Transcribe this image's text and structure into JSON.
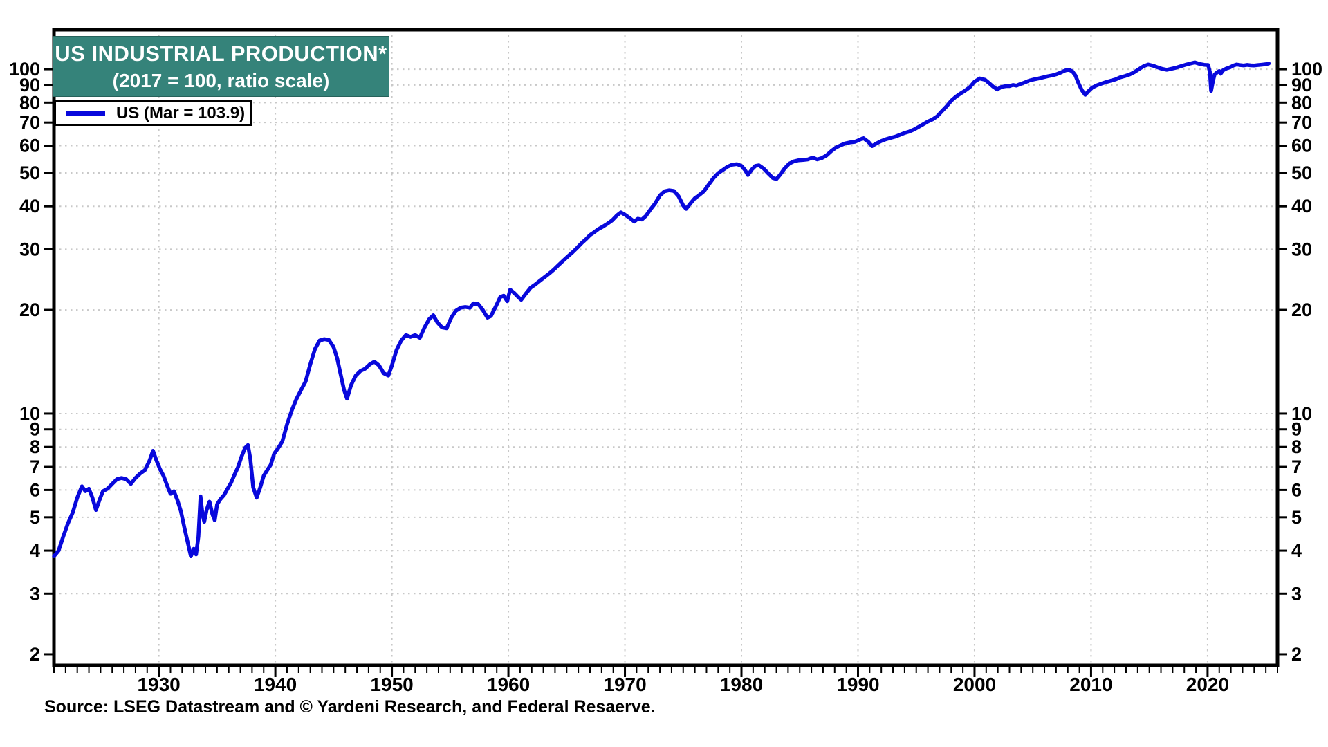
{
  "header": {
    "title_line1": "US INDUSTRIAL PRODUCTION*",
    "title_line2": "(2017 = 100, ratio scale)",
    "title_bg": "#35837a",
    "title_color": "#ffffff"
  },
  "legend": {
    "label": "US (Mar = 103.9)",
    "line_color": "#0808dc"
  },
  "footer": {
    "source": "Source: LSEG Datastream and © Yardeni Research, and Federal Resaerve."
  },
  "colors": {
    "line_blue": "#0808dc",
    "grid_gray": "#c8c8c8",
    "axis_black": "#000000",
    "header_teal": "#35837a"
  },
  "chart_data": {
    "type": "line",
    "title": "US INDUSTRIAL PRODUCTION*",
    "subtitle": "(2017 = 100, ratio scale)",
    "y_scale": "log",
    "grid": "dotted",
    "legend_position": "top-left",
    "xlim": [
      1921,
      2026
    ],
    "ylim": [
      1.857,
      130.2
    ],
    "x_major_ticks": [
      1930,
      1940,
      1950,
      1960,
      1970,
      1980,
      1990,
      2000,
      2010,
      2020
    ],
    "x_minor_tick_step": 1,
    "y_ticks": [
      2,
      3,
      4,
      5,
      6,
      7,
      8,
      9,
      10,
      20,
      30,
      40,
      50,
      60,
      70,
      80,
      90,
      100
    ],
    "y_gridlines": [
      3,
      4,
      5,
      6,
      7,
      8,
      9,
      10,
      20,
      30,
      40,
      50,
      60,
      70,
      80,
      90,
      100
    ],
    "y_tick_sides": "both",
    "series": [
      {
        "name": "US (Mar = 103.9)",
        "color": "#0808dc",
        "latest_period": "Mar",
        "latest_value": 103.9,
        "points": [
          [
            1921.0,
            3.85
          ],
          [
            1921.4,
            4.0
          ],
          [
            1921.8,
            4.4
          ],
          [
            1922.2,
            4.8
          ],
          [
            1922.6,
            5.15
          ],
          [
            1923.0,
            5.7
          ],
          [
            1923.4,
            6.15
          ],
          [
            1923.7,
            5.95
          ],
          [
            1924.0,
            6.05
          ],
          [
            1924.3,
            5.7
          ],
          [
            1924.6,
            5.25
          ],
          [
            1924.9,
            5.6
          ],
          [
            1925.2,
            5.95
          ],
          [
            1925.6,
            6.05
          ],
          [
            1926.0,
            6.25
          ],
          [
            1926.4,
            6.45
          ],
          [
            1926.8,
            6.5
          ],
          [
            1927.2,
            6.45
          ],
          [
            1927.6,
            6.25
          ],
          [
            1928.0,
            6.5
          ],
          [
            1928.4,
            6.7
          ],
          [
            1928.8,
            6.85
          ],
          [
            1929.2,
            7.3
          ],
          [
            1929.5,
            7.8
          ],
          [
            1929.8,
            7.3
          ],
          [
            1930.1,
            6.9
          ],
          [
            1930.4,
            6.6
          ],
          [
            1930.7,
            6.2
          ],
          [
            1931.0,
            5.85
          ],
          [
            1931.3,
            5.95
          ],
          [
            1931.6,
            5.6
          ],
          [
            1931.9,
            5.2
          ],
          [
            1932.2,
            4.65
          ],
          [
            1932.5,
            4.2
          ],
          [
            1932.75,
            3.85
          ],
          [
            1933.0,
            4.05
          ],
          [
            1933.2,
            3.9
          ],
          [
            1933.4,
            4.4
          ],
          [
            1933.58,
            5.75
          ],
          [
            1933.75,
            5.1
          ],
          [
            1933.9,
            4.85
          ],
          [
            1934.1,
            5.25
          ],
          [
            1934.35,
            5.55
          ],
          [
            1934.6,
            5.1
          ],
          [
            1934.8,
            4.9
          ],
          [
            1935.0,
            5.45
          ],
          [
            1935.3,
            5.65
          ],
          [
            1935.6,
            5.8
          ],
          [
            1935.9,
            6.05
          ],
          [
            1936.2,
            6.3
          ],
          [
            1936.5,
            6.65
          ],
          [
            1936.8,
            7.0
          ],
          [
            1937.1,
            7.5
          ],
          [
            1937.4,
            7.95
          ],
          [
            1937.65,
            8.1
          ],
          [
            1937.85,
            7.4
          ],
          [
            1938.1,
            6.1
          ],
          [
            1938.4,
            5.7
          ],
          [
            1938.7,
            6.1
          ],
          [
            1939.0,
            6.6
          ],
          [
            1939.3,
            6.85
          ],
          [
            1939.6,
            7.1
          ],
          [
            1939.9,
            7.65
          ],
          [
            1940.2,
            7.9
          ],
          [
            1940.6,
            8.3
          ],
          [
            1941.0,
            9.3
          ],
          [
            1941.4,
            10.2
          ],
          [
            1941.8,
            11.0
          ],
          [
            1942.2,
            11.7
          ],
          [
            1942.6,
            12.4
          ],
          [
            1943.0,
            13.9
          ],
          [
            1943.4,
            15.4
          ],
          [
            1943.8,
            16.3
          ],
          [
            1944.2,
            16.45
          ],
          [
            1944.6,
            16.35
          ],
          [
            1945.0,
            15.6
          ],
          [
            1945.3,
            14.5
          ],
          [
            1945.6,
            13.0
          ],
          [
            1945.9,
            11.7
          ],
          [
            1946.15,
            11.05
          ],
          [
            1946.5,
            12.1
          ],
          [
            1946.9,
            12.9
          ],
          [
            1947.3,
            13.3
          ],
          [
            1947.7,
            13.5
          ],
          [
            1948.1,
            13.9
          ],
          [
            1948.5,
            14.15
          ],
          [
            1948.9,
            13.8
          ],
          [
            1949.3,
            13.1
          ],
          [
            1949.7,
            12.9
          ],
          [
            1950.0,
            13.8
          ],
          [
            1950.4,
            15.3
          ],
          [
            1950.8,
            16.3
          ],
          [
            1951.2,
            16.9
          ],
          [
            1951.6,
            16.7
          ],
          [
            1952.0,
            16.9
          ],
          [
            1952.4,
            16.6
          ],
          [
            1952.8,
            17.8
          ],
          [
            1953.2,
            18.8
          ],
          [
            1953.55,
            19.3
          ],
          [
            1953.9,
            18.4
          ],
          [
            1954.3,
            17.8
          ],
          [
            1954.7,
            17.7
          ],
          [
            1955.1,
            19.0
          ],
          [
            1955.5,
            19.9
          ],
          [
            1955.9,
            20.3
          ],
          [
            1956.3,
            20.4
          ],
          [
            1956.7,
            20.3
          ],
          [
            1957.0,
            20.9
          ],
          [
            1957.4,
            20.8
          ],
          [
            1957.8,
            20.0
          ],
          [
            1958.2,
            19.0
          ],
          [
            1958.5,
            19.2
          ],
          [
            1958.9,
            20.4
          ],
          [
            1959.3,
            21.8
          ],
          [
            1959.6,
            22.0
          ],
          [
            1959.9,
            21.2
          ],
          [
            1960.15,
            22.9
          ],
          [
            1960.5,
            22.4
          ],
          [
            1960.9,
            21.7
          ],
          [
            1961.1,
            21.4
          ],
          [
            1961.5,
            22.3
          ],
          [
            1961.9,
            23.2
          ],
          [
            1962.3,
            23.7
          ],
          [
            1962.7,
            24.3
          ],
          [
            1963.1,
            24.9
          ],
          [
            1963.5,
            25.5
          ],
          [
            1963.9,
            26.2
          ],
          [
            1964.3,
            27.0
          ],
          [
            1964.7,
            27.8
          ],
          [
            1965.1,
            28.6
          ],
          [
            1965.5,
            29.4
          ],
          [
            1965.9,
            30.3
          ],
          [
            1966.3,
            31.3
          ],
          [
            1966.7,
            32.2
          ],
          [
            1967.0,
            33.0
          ],
          [
            1967.3,
            33.5
          ],
          [
            1967.7,
            34.3
          ],
          [
            1968.1,
            34.9
          ],
          [
            1968.5,
            35.6
          ],
          [
            1968.9,
            36.4
          ],
          [
            1969.3,
            37.6
          ],
          [
            1969.65,
            38.4
          ],
          [
            1970.0,
            37.8
          ],
          [
            1970.4,
            37.0
          ],
          [
            1970.8,
            36.1
          ],
          [
            1971.1,
            36.8
          ],
          [
            1971.45,
            36.6
          ],
          [
            1971.8,
            37.5
          ],
          [
            1972.2,
            39.2
          ],
          [
            1972.6,
            40.8
          ],
          [
            1973.0,
            43.0
          ],
          [
            1973.4,
            44.2
          ],
          [
            1973.8,
            44.5
          ],
          [
            1974.2,
            44.3
          ],
          [
            1974.6,
            42.8
          ],
          [
            1975.0,
            40.2
          ],
          [
            1975.25,
            39.3
          ],
          [
            1975.6,
            40.7
          ],
          [
            1976.0,
            42.2
          ],
          [
            1976.4,
            43.2
          ],
          [
            1976.8,
            44.3
          ],
          [
            1977.2,
            46.3
          ],
          [
            1977.6,
            48.3
          ],
          [
            1978.0,
            49.9
          ],
          [
            1978.4,
            51.0
          ],
          [
            1978.8,
            52.1
          ],
          [
            1979.2,
            52.8
          ],
          [
            1979.6,
            53.0
          ],
          [
            1980.0,
            52.4
          ],
          [
            1980.3,
            51.0
          ],
          [
            1980.55,
            49.3
          ],
          [
            1980.9,
            51.2
          ],
          [
            1981.2,
            52.4
          ],
          [
            1981.5,
            52.6
          ],
          [
            1981.9,
            51.5
          ],
          [
            1982.3,
            49.8
          ],
          [
            1982.7,
            48.3
          ],
          [
            1983.0,
            48.0
          ],
          [
            1983.3,
            49.3
          ],
          [
            1983.7,
            51.5
          ],
          [
            1984.1,
            53.2
          ],
          [
            1984.5,
            54.0
          ],
          [
            1984.9,
            54.4
          ],
          [
            1985.3,
            54.5
          ],
          [
            1985.7,
            54.7
          ],
          [
            1986.1,
            55.4
          ],
          [
            1986.5,
            54.7
          ],
          [
            1986.9,
            55.2
          ],
          [
            1987.3,
            56.2
          ],
          [
            1987.7,
            57.8
          ],
          [
            1988.1,
            59.2
          ],
          [
            1988.5,
            60.1
          ],
          [
            1988.9,
            60.9
          ],
          [
            1989.3,
            61.3
          ],
          [
            1989.7,
            61.5
          ],
          [
            1990.1,
            62.3
          ],
          [
            1990.45,
            63.1
          ],
          [
            1990.9,
            61.5
          ],
          [
            1991.2,
            59.8
          ],
          [
            1991.6,
            60.9
          ],
          [
            1992.0,
            61.9
          ],
          [
            1992.4,
            62.6
          ],
          [
            1992.8,
            63.2
          ],
          [
            1993.2,
            63.7
          ],
          [
            1993.6,
            64.5
          ],
          [
            1994.0,
            65.3
          ],
          [
            1994.4,
            65.9
          ],
          [
            1994.8,
            66.8
          ],
          [
            1995.2,
            68.0
          ],
          [
            1995.6,
            69.2
          ],
          [
            1996.0,
            70.5
          ],
          [
            1996.4,
            71.5
          ],
          [
            1996.8,
            73.0
          ],
          [
            1997.2,
            75.5
          ],
          [
            1997.6,
            78.0
          ],
          [
            1998.0,
            81.0
          ],
          [
            1998.4,
            83.2
          ],
          [
            1998.8,
            85.0
          ],
          [
            1999.2,
            86.7
          ],
          [
            1999.6,
            88.7
          ],
          [
            2000.0,
            92.0
          ],
          [
            2000.45,
            94.0
          ],
          [
            2000.9,
            93.2
          ],
          [
            2001.3,
            90.8
          ],
          [
            2001.6,
            89.0
          ],
          [
            2001.95,
            87.3
          ],
          [
            2002.3,
            88.8
          ],
          [
            2002.7,
            89.3
          ],
          [
            2003.0,
            89.3
          ],
          [
            2003.3,
            90.0
          ],
          [
            2003.6,
            89.6
          ],
          [
            2003.9,
            90.5
          ],
          [
            2004.3,
            91.5
          ],
          [
            2004.7,
            92.7
          ],
          [
            2005.1,
            93.4
          ],
          [
            2005.5,
            94.0
          ],
          [
            2005.9,
            94.7
          ],
          [
            2006.3,
            95.4
          ],
          [
            2006.7,
            96.0
          ],
          [
            2007.0,
            96.6
          ],
          [
            2007.4,
            97.8
          ],
          [
            2007.8,
            99.2
          ],
          [
            2008.1,
            99.6
          ],
          [
            2008.4,
            98.5
          ],
          [
            2008.65,
            96.0
          ],
          [
            2008.9,
            91.5
          ],
          [
            2009.2,
            87.0
          ],
          [
            2009.5,
            84.3
          ],
          [
            2009.8,
            86.5
          ],
          [
            2010.1,
            88.4
          ],
          [
            2010.5,
            89.8
          ],
          [
            2010.9,
            90.8
          ],
          [
            2011.3,
            91.8
          ],
          [
            2011.7,
            92.6
          ],
          [
            2012.1,
            93.4
          ],
          [
            2012.5,
            94.7
          ],
          [
            2012.9,
            95.5
          ],
          [
            2013.3,
            96.5
          ],
          [
            2013.7,
            98.0
          ],
          [
            2014.1,
            100.0
          ],
          [
            2014.5,
            102.0
          ],
          [
            2014.9,
            103.2
          ],
          [
            2015.3,
            102.4
          ],
          [
            2015.7,
            101.3
          ],
          [
            2016.1,
            100.2
          ],
          [
            2016.5,
            99.6
          ],
          [
            2016.9,
            100.3
          ],
          [
            2017.3,
            101.0
          ],
          [
            2017.7,
            102.0
          ],
          [
            2018.1,
            103.0
          ],
          [
            2018.5,
            103.8
          ],
          [
            2018.9,
            104.6
          ],
          [
            2019.3,
            103.6
          ],
          [
            2019.7,
            103.0
          ],
          [
            2020.05,
            102.8
          ],
          [
            2020.2,
            98.0
          ],
          [
            2020.3,
            86.5
          ],
          [
            2020.45,
            92.0
          ],
          [
            2020.6,
            96.5
          ],
          [
            2020.8,
            97.8
          ],
          [
            2021.0,
            98.8
          ],
          [
            2021.12,
            97.0
          ],
          [
            2021.35,
            99.4
          ],
          [
            2021.6,
            100.4
          ],
          [
            2021.9,
            101.2
          ],
          [
            2022.2,
            102.4
          ],
          [
            2022.5,
            103.2
          ],
          [
            2022.8,
            102.8
          ],
          [
            2023.1,
            102.5
          ],
          [
            2023.4,
            102.9
          ],
          [
            2023.7,
            102.6
          ],
          [
            2024.0,
            102.5
          ],
          [
            2024.3,
            102.8
          ],
          [
            2024.7,
            103.1
          ],
          [
            2025.0,
            103.4
          ],
          [
            2025.25,
            103.9
          ]
        ]
      }
    ]
  }
}
